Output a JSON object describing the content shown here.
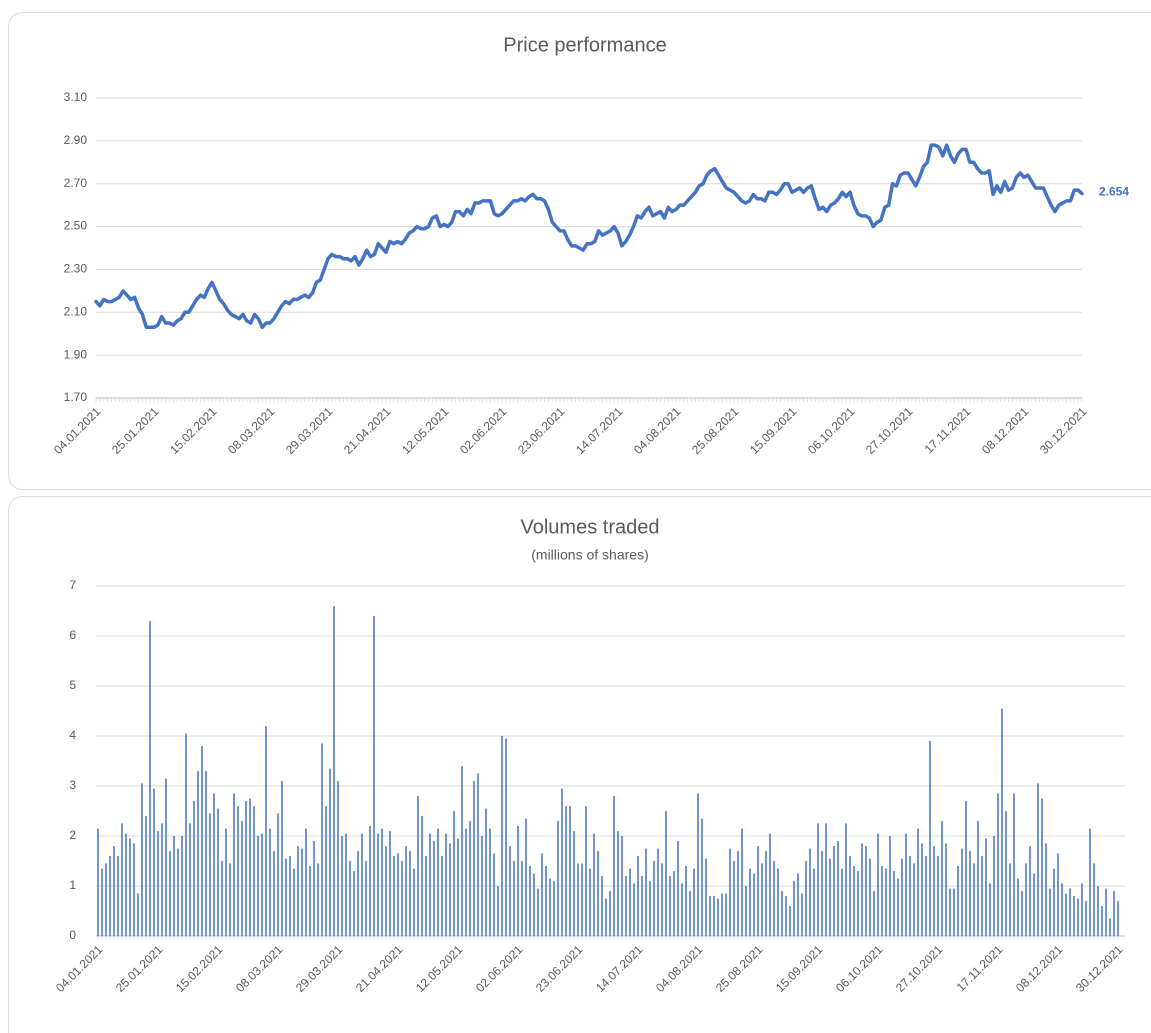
{
  "chart_data": [
    {
      "type": "line",
      "title": "Price performance",
      "color": "#4472c4",
      "end_label": true,
      "grid": true,
      "ylim": [
        1.7,
        3.1
      ],
      "yticks": [
        {
          "value": 1.7,
          "label": "1.70"
        },
        {
          "value": 1.9,
          "label": "1.90"
        },
        {
          "value": 2.1,
          "label": "2.10"
        },
        {
          "value": 2.3,
          "label": "2.30"
        },
        {
          "value": 2.5,
          "label": "2.50"
        },
        {
          "value": 2.7,
          "label": "2.70"
        },
        {
          "value": 2.9,
          "label": "2.90"
        },
        {
          "value": 3.1,
          "label": "3.10"
        }
      ],
      "categories": [
        "04.01.2021",
        null,
        null,
        null,
        null,
        null,
        null,
        null,
        null,
        null,
        null,
        null,
        null,
        null,
        null,
        "25.01.2021",
        null,
        null,
        null,
        null,
        null,
        null,
        null,
        null,
        null,
        null,
        null,
        null,
        null,
        null,
        "15.02.2021",
        null,
        null,
        null,
        null,
        null,
        null,
        null,
        null,
        null,
        null,
        null,
        null,
        null,
        null,
        "08.03.2021",
        null,
        null,
        null,
        null,
        null,
        null,
        null,
        null,
        null,
        null,
        null,
        null,
        null,
        null,
        "29.03.2021",
        null,
        null,
        null,
        null,
        null,
        null,
        null,
        null,
        null,
        null,
        null,
        null,
        null,
        null,
        "21.04.2021",
        null,
        null,
        null,
        null,
        null,
        null,
        null,
        null,
        null,
        null,
        null,
        null,
        null,
        null,
        "12.05.2021",
        null,
        null,
        null,
        null,
        null,
        null,
        null,
        null,
        null,
        null,
        null,
        null,
        null,
        null,
        "02.06.2021",
        null,
        null,
        null,
        null,
        null,
        null,
        null,
        null,
        null,
        null,
        null,
        null,
        null,
        null,
        "23.06.2021",
        null,
        null,
        null,
        null,
        null,
        null,
        null,
        null,
        null,
        null,
        null,
        null,
        null,
        null,
        "14.07.2021",
        null,
        null,
        null,
        null,
        null,
        null,
        null,
        null,
        null,
        null,
        null,
        null,
        null,
        null,
        "04.08.2021",
        null,
        null,
        null,
        null,
        null,
        null,
        null,
        null,
        null,
        null,
        null,
        null,
        null,
        null,
        "25.08.2021",
        null,
        null,
        null,
        null,
        null,
        null,
        null,
        null,
        null,
        null,
        null,
        null,
        null,
        null,
        "15.09.2021",
        null,
        null,
        null,
        null,
        null,
        null,
        null,
        null,
        null,
        null,
        null,
        null,
        null,
        null,
        "06.10.2021",
        null,
        null,
        null,
        null,
        null,
        null,
        null,
        null,
        null,
        null,
        null,
        null,
        null,
        null,
        "27.10.2021",
        null,
        null,
        null,
        null,
        null,
        null,
        null,
        null,
        null,
        null,
        null,
        null,
        null,
        null,
        "17.11.2021",
        null,
        null,
        null,
        null,
        null,
        null,
        null,
        null,
        null,
        null,
        null,
        null,
        null,
        null,
        "08.12.2021",
        null,
        null,
        null,
        null,
        null,
        null,
        null,
        null,
        null,
        null,
        null,
        null,
        null,
        null,
        "30.12.2021"
      ],
      "values": [
        2.15,
        2.13,
        2.16,
        2.15,
        2.15,
        2.16,
        2.17,
        2.2,
        2.18,
        2.16,
        2.17,
        2.12,
        2.09,
        2.03,
        2.03,
        2.03,
        2.04,
        2.08,
        2.05,
        2.05,
        2.04,
        2.06,
        2.07,
        2.1,
        2.1,
        2.13,
        2.16,
        2.18,
        2.17,
        2.21,
        2.24,
        2.2,
        2.16,
        2.14,
        2.11,
        2.09,
        2.08,
        2.07,
        2.09,
        2.06,
        2.05,
        2.09,
        2.07,
        2.03,
        2.05,
        2.05,
        2.07,
        2.1,
        2.13,
        2.15,
        2.14,
        2.16,
        2.16,
        2.17,
        2.18,
        2.17,
        2.19,
        2.24,
        2.25,
        2.3,
        2.35,
        2.37,
        2.36,
        2.36,
        2.35,
        2.35,
        2.34,
        2.36,
        2.32,
        2.35,
        2.39,
        2.36,
        2.37,
        2.42,
        2.4,
        2.38,
        2.43,
        2.42,
        2.43,
        2.42,
        2.44,
        2.47,
        2.48,
        2.5,
        2.49,
        2.49,
        2.5,
        2.54,
        2.55,
        2.5,
        2.51,
        2.5,
        2.52,
        2.57,
        2.57,
        2.55,
        2.58,
        2.56,
        2.61,
        2.61,
        2.62,
        2.62,
        2.62,
        2.56,
        2.55,
        2.56,
        2.58,
        2.6,
        2.62,
        2.62,
        2.63,
        2.62,
        2.64,
        2.65,
        2.63,
        2.63,
        2.62,
        2.58,
        2.52,
        2.5,
        2.48,
        2.48,
        2.44,
        2.41,
        2.41,
        2.4,
        2.39,
        2.42,
        2.42,
        2.43,
        2.48,
        2.46,
        2.47,
        2.48,
        2.5,
        2.47,
        2.41,
        2.43,
        2.46,
        2.5,
        2.55,
        2.54,
        2.57,
        2.59,
        2.55,
        2.56,
        2.57,
        2.54,
        2.59,
        2.57,
        2.58,
        2.6,
        2.6,
        2.62,
        2.64,
        2.66,
        2.69,
        2.7,
        2.74,
        2.76,
        2.77,
        2.74,
        2.71,
        2.68,
        2.67,
        2.66,
        2.64,
        2.62,
        2.61,
        2.62,
        2.65,
        2.63,
        2.63,
        2.62,
        2.66,
        2.66,
        2.65,
        2.67,
        2.7,
        2.7,
        2.66,
        2.67,
        2.68,
        2.66,
        2.68,
        2.69,
        2.63,
        2.58,
        2.59,
        2.57,
        2.6,
        2.61,
        2.63,
        2.66,
        2.64,
        2.66,
        2.6,
        2.56,
        2.55,
        2.55,
        2.54,
        2.5,
        2.52,
        2.53,
        2.59,
        2.6,
        2.7,
        2.69,
        2.74,
        2.75,
        2.75,
        2.72,
        2.69,
        2.73,
        2.78,
        2.8,
        2.88,
        2.88,
        2.87,
        2.83,
        2.88,
        2.83,
        2.8,
        2.84,
        2.86,
        2.86,
        2.8,
        2.8,
        2.77,
        2.75,
        2.75,
        2.76,
        2.65,
        2.69,
        2.66,
        2.71,
        2.67,
        2.68,
        2.73,
        2.75,
        2.73,
        2.74,
        2.71,
        2.68,
        2.68,
        2.68,
        2.64,
        2.6,
        2.57,
        2.6,
        2.61,
        2.62,
        2.62,
        2.67,
        2.67,
        2.654
      ]
    },
    {
      "type": "bar",
      "title": "Volumes traded",
      "subtitle": "(millions of shares)",
      "color": "#4472c4",
      "grid": true,
      "ylim": [
        0,
        7
      ],
      "yticks": [
        0,
        1,
        2,
        3,
        4,
        5,
        6,
        7
      ],
      "categories": [
        "04.01.2021",
        null,
        null,
        null,
        null,
        null,
        null,
        null,
        null,
        null,
        null,
        null,
        null,
        null,
        null,
        "25.01.2021",
        null,
        null,
        null,
        null,
        null,
        null,
        null,
        null,
        null,
        null,
        null,
        null,
        null,
        null,
        "15.02.2021",
        null,
        null,
        null,
        null,
        null,
        null,
        null,
        null,
        null,
        null,
        null,
        null,
        null,
        null,
        "08.03.2021",
        null,
        null,
        null,
        null,
        null,
        null,
        null,
        null,
        null,
        null,
        null,
        null,
        null,
        null,
        "29.03.2021",
        null,
        null,
        null,
        null,
        null,
        null,
        null,
        null,
        null,
        null,
        null,
        null,
        null,
        null,
        "21.04.2021",
        null,
        null,
        null,
        null,
        null,
        null,
        null,
        null,
        null,
        null,
        null,
        null,
        null,
        null,
        "12.05.2021",
        null,
        null,
        null,
        null,
        null,
        null,
        null,
        null,
        null,
        null,
        null,
        null,
        null,
        null,
        "02.06.2021",
        null,
        null,
        null,
        null,
        null,
        null,
        null,
        null,
        null,
        null,
        null,
        null,
        null,
        null,
        "23.06.2021",
        null,
        null,
        null,
        null,
        null,
        null,
        null,
        null,
        null,
        null,
        null,
        null,
        null,
        null,
        "14.07.2021",
        null,
        null,
        null,
        null,
        null,
        null,
        null,
        null,
        null,
        null,
        null,
        null,
        null,
        null,
        "04.08.2021",
        null,
        null,
        null,
        null,
        null,
        null,
        null,
        null,
        null,
        null,
        null,
        null,
        null,
        null,
        "25.08.2021",
        null,
        null,
        null,
        null,
        null,
        null,
        null,
        null,
        null,
        null,
        null,
        null,
        null,
        null,
        "15.09.2021",
        null,
        null,
        null,
        null,
        null,
        null,
        null,
        null,
        null,
        null,
        null,
        null,
        null,
        null,
        "06.10.2021",
        null,
        null,
        null,
        null,
        null,
        null,
        null,
        null,
        null,
        null,
        null,
        null,
        null,
        null,
        "27.10.2021",
        null,
        null,
        null,
        null,
        null,
        null,
        null,
        null,
        null,
        null,
        null,
        null,
        null,
        null,
        "17.11.2021",
        null,
        null,
        null,
        null,
        null,
        null,
        null,
        null,
        null,
        null,
        null,
        null,
        null,
        null,
        "08.12.2021",
        null,
        null,
        null,
        null,
        null,
        null,
        null,
        null,
        null,
        null,
        null,
        null,
        null,
        null,
        "30.12.2021"
      ],
      "values": [
        2.15,
        1.35,
        1.45,
        1.6,
        1.8,
        1.6,
        2.25,
        2.05,
        1.95,
        1.85,
        0.85,
        3.05,
        2.4,
        6.3,
        2.95,
        2.1,
        2.25,
        3.15,
        1.7,
        2.0,
        1.75,
        2.0,
        4.05,
        2.25,
        2.7,
        3.3,
        3.8,
        3.3,
        2.45,
        2.85,
        2.55,
        1.5,
        2.15,
        1.45,
        2.85,
        2.6,
        2.3,
        2.7,
        2.75,
        2.6,
        2.0,
        2.05,
        4.2,
        2.15,
        1.7,
        2.45,
        3.1,
        1.55,
        1.6,
        1.35,
        1.8,
        1.75,
        2.15,
        1.4,
        1.9,
        1.45,
        3.85,
        2.6,
        3.35,
        6.6,
        3.1,
        2.0,
        2.05,
        1.5,
        1.3,
        1.7,
        2.05,
        1.5,
        2.2,
        6.4,
        2.05,
        2.15,
        1.8,
        2.1,
        1.6,
        1.65,
        1.5,
        1.8,
        1.7,
        1.35,
        2.8,
        2.4,
        1.6,
        2.05,
        1.9,
        2.15,
        1.6,
        2.05,
        1.85,
        2.5,
        1.95,
        3.4,
        2.15,
        2.3,
        3.1,
        3.25,
        2.0,
        2.55,
        2.15,
        1.65,
        1.0,
        4.0,
        3.95,
        1.8,
        1.5,
        2.2,
        1.5,
        2.35,
        1.4,
        1.25,
        0.95,
        1.65,
        1.4,
        1.15,
        1.1,
        2.3,
        2.95,
        2.6,
        2.6,
        2.1,
        1.45,
        1.45,
        2.6,
        1.35,
        2.05,
        1.7,
        1.2,
        0.75,
        0.9,
        2.8,
        2.1,
        2.0,
        1.2,
        1.35,
        1.05,
        1.6,
        1.2,
        1.75,
        1.1,
        1.5,
        1.75,
        1.45,
        2.5,
        1.2,
        1.3,
        1.9,
        1.05,
        1.4,
        0.9,
        1.35,
        2.85,
        2.35,
        1.55,
        0.8,
        0.8,
        0.75,
        0.85,
        0.85,
        1.75,
        1.5,
        1.7,
        2.15,
        1.0,
        1.35,
        1.25,
        1.8,
        1.45,
        1.7,
        2.05,
        1.5,
        1.35,
        0.9,
        0.8,
        0.6,
        1.1,
        1.25,
        0.85,
        1.5,
        1.75,
        1.35,
        2.25,
        1.7,
        2.25,
        1.55,
        1.8,
        1.9,
        1.35,
        2.25,
        1.6,
        1.4,
        1.3,
        1.85,
        1.8,
        1.55,
        0.9,
        2.05,
        1.4,
        1.35,
        2.0,
        1.3,
        1.15,
        1.55,
        2.05,
        1.6,
        1.45,
        2.15,
        1.85,
        1.6,
        3.9,
        1.8,
        1.6,
        2.3,
        1.85,
        0.95,
        0.95,
        1.4,
        1.75,
        2.7,
        1.7,
        1.45,
        2.3,
        1.6,
        1.95,
        1.05,
        2.0,
        2.85,
        4.55,
        2.5,
        1.45,
        2.85,
        1.15,
        0.9,
        1.45,
        1.8,
        1.25,
        3.05,
        2.75,
        1.85,
        0.95,
        1.35,
        1.65,
        1.05,
        0.85,
        0.95,
        0.8,
        0.75,
        1.05,
        0.7,
        2.15,
        1.45,
        1.0,
        0.6,
        0.95,
        0.35,
        0.9,
        0.7
      ]
    }
  ]
}
